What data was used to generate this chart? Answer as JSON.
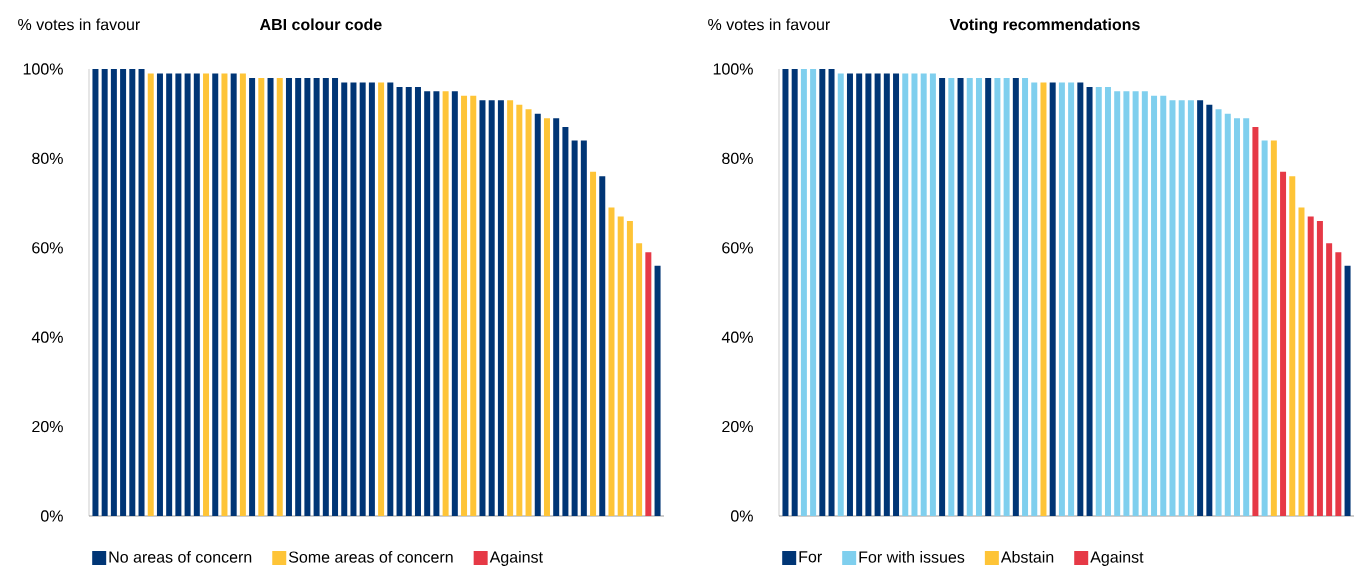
{
  "chart_data": [
    {
      "type": "bar",
      "title": "ABI colour code",
      "ylabel": "% votes in favour",
      "tick_labels": "y",
      "legend": "bottom",
      "categories": [
        null,
        null,
        null,
        null,
        null,
        null,
        null,
        null,
        null,
        null,
        null,
        null,
        null,
        null,
        null,
        null,
        null,
        null,
        null,
        null,
        null,
        null,
        null,
        null,
        null,
        null,
        null,
        null,
        null,
        null,
        null,
        null,
        null,
        null,
        null,
        null,
        null,
        null,
        null,
        null,
        null,
        null,
        null,
        null,
        null,
        null,
        null,
        null,
        null,
        null,
        null,
        null,
        null,
        null,
        null,
        null,
        null,
        null,
        null,
        null,
        null,
        null
      ],
      "ylim": [
        0,
        100
      ],
      "yticks": [
        {
          "value": 0,
          "label": "0%"
        },
        {
          "value": 20,
          "label": "20%"
        },
        {
          "value": 40,
          "label": "40%"
        },
        {
          "value": 60,
          "label": "60%"
        },
        {
          "value": 80,
          "label": "80%"
        },
        {
          "value": 100,
          "label": "100%"
        }
      ],
      "series": [
        {
          "name": "No areas of concern",
          "color": "#003575",
          "values": [
            100,
            100,
            100,
            100,
            100,
            100,
            null,
            99,
            99,
            99,
            99,
            99,
            null,
            99,
            null,
            99,
            null,
            98,
            null,
            98,
            null,
            98,
            98,
            98,
            98,
            98,
            98,
            97,
            97,
            97,
            97,
            null,
            97,
            96,
            96,
            96,
            95,
            95,
            null,
            95,
            null,
            null,
            93,
            93,
            93,
            null,
            null,
            null,
            90,
            null,
            89,
            87,
            84,
            84,
            null,
            76,
            null,
            null,
            null,
            null,
            null,
            56
          ]
        },
        {
          "name": "Some areas of concern",
          "color": "#fec437",
          "values": [
            null,
            null,
            null,
            null,
            null,
            null,
            99,
            null,
            null,
            null,
            null,
            null,
            99,
            null,
            99,
            null,
            99,
            null,
            98,
            null,
            98,
            null,
            null,
            null,
            null,
            null,
            null,
            null,
            null,
            null,
            null,
            97,
            null,
            null,
            null,
            null,
            null,
            null,
            95,
            null,
            94,
            94,
            null,
            null,
            null,
            93,
            92,
            91,
            null,
            89,
            null,
            null,
            null,
            null,
            77,
            null,
            69,
            67,
            66,
            61,
            null,
            null
          ]
        },
        {
          "name": "Against",
          "color": "#e63946",
          "values": [
            null,
            null,
            null,
            null,
            null,
            null,
            null,
            null,
            null,
            null,
            null,
            null,
            null,
            null,
            null,
            null,
            null,
            null,
            null,
            null,
            null,
            null,
            null,
            null,
            null,
            null,
            null,
            null,
            null,
            null,
            null,
            null,
            null,
            null,
            null,
            null,
            null,
            null,
            null,
            null,
            null,
            null,
            null,
            null,
            null,
            null,
            null,
            null,
            null,
            null,
            null,
            null,
            null,
            null,
            null,
            null,
            null,
            null,
            null,
            null,
            59,
            null
          ]
        }
      ]
    },
    {
      "type": "bar",
      "title": "Voting recommendations",
      "ylabel": "% votes in favour",
      "tick_labels": "y",
      "legend": "bottom",
      "categories": [
        null,
        null,
        null,
        null,
        null,
        null,
        null,
        null,
        null,
        null,
        null,
        null,
        null,
        null,
        null,
        null,
        null,
        null,
        null,
        null,
        null,
        null,
        null,
        null,
        null,
        null,
        null,
        null,
        null,
        null,
        null,
        null,
        null,
        null,
        null,
        null,
        null,
        null,
        null,
        null,
        null,
        null,
        null,
        null,
        null,
        null,
        null,
        null,
        null,
        null,
        null,
        null,
        null,
        null,
        null,
        null,
        null,
        null,
        null,
        null,
        null,
        null
      ],
      "ylim": [
        0,
        100
      ],
      "yticks": [
        {
          "value": 0,
          "label": "0%"
        },
        {
          "value": 20,
          "label": "20%"
        },
        {
          "value": 40,
          "label": "40%"
        },
        {
          "value": 60,
          "label": "60%"
        },
        {
          "value": 80,
          "label": "80%"
        },
        {
          "value": 100,
          "label": "100%"
        }
      ],
      "series": [
        {
          "name": "For",
          "color": "#003575",
          "values": [
            100,
            100,
            null,
            null,
            100,
            100,
            null,
            99,
            99,
            99,
            99,
            99,
            99,
            null,
            null,
            null,
            null,
            98,
            null,
            98,
            null,
            null,
            98,
            null,
            null,
            98,
            null,
            null,
            null,
            97,
            null,
            null,
            97,
            96,
            null,
            null,
            null,
            null,
            null,
            null,
            null,
            null,
            null,
            null,
            null,
            93,
            92,
            null,
            null,
            null,
            null,
            null,
            null,
            null,
            null,
            null,
            null,
            null,
            null,
            null,
            null,
            56
          ]
        },
        {
          "name": "For with issues",
          "color": "#7fcfee",
          "values": [
            null,
            null,
            100,
            100,
            null,
            null,
            99,
            null,
            null,
            null,
            null,
            null,
            null,
            99,
            99,
            99,
            99,
            null,
            98,
            null,
            98,
            98,
            null,
            98,
            98,
            null,
            98,
            97,
            null,
            null,
            97,
            97,
            null,
            null,
            96,
            96,
            95,
            95,
            95,
            95,
            94,
            94,
            93,
            93,
            93,
            null,
            null,
            91,
            90,
            89,
            89,
            null,
            84,
            null,
            null,
            null,
            null,
            null,
            null,
            null,
            null,
            null
          ]
        },
        {
          "name": "Abstain",
          "color": "#fec437",
          "values": [
            null,
            null,
            null,
            null,
            null,
            null,
            null,
            null,
            null,
            null,
            null,
            null,
            null,
            null,
            null,
            null,
            null,
            null,
            null,
            null,
            null,
            null,
            null,
            null,
            null,
            null,
            null,
            null,
            97,
            null,
            null,
            null,
            null,
            null,
            null,
            null,
            null,
            null,
            null,
            null,
            null,
            null,
            null,
            null,
            null,
            null,
            null,
            null,
            null,
            null,
            null,
            null,
            null,
            84,
            null,
            76,
            69,
            null,
            null,
            null,
            null,
            null
          ]
        },
        {
          "name": "Against",
          "color": "#e63946",
          "values": [
            null,
            null,
            null,
            null,
            null,
            null,
            null,
            null,
            null,
            null,
            null,
            null,
            null,
            null,
            null,
            null,
            null,
            null,
            null,
            null,
            null,
            null,
            null,
            null,
            null,
            null,
            null,
            null,
            null,
            null,
            null,
            null,
            null,
            null,
            null,
            null,
            null,
            null,
            null,
            null,
            null,
            null,
            null,
            null,
            null,
            null,
            null,
            null,
            null,
            null,
            null,
            87,
            null,
            null,
            77,
            null,
            null,
            67,
            66,
            61,
            59,
            null
          ]
        }
      ]
    }
  ]
}
